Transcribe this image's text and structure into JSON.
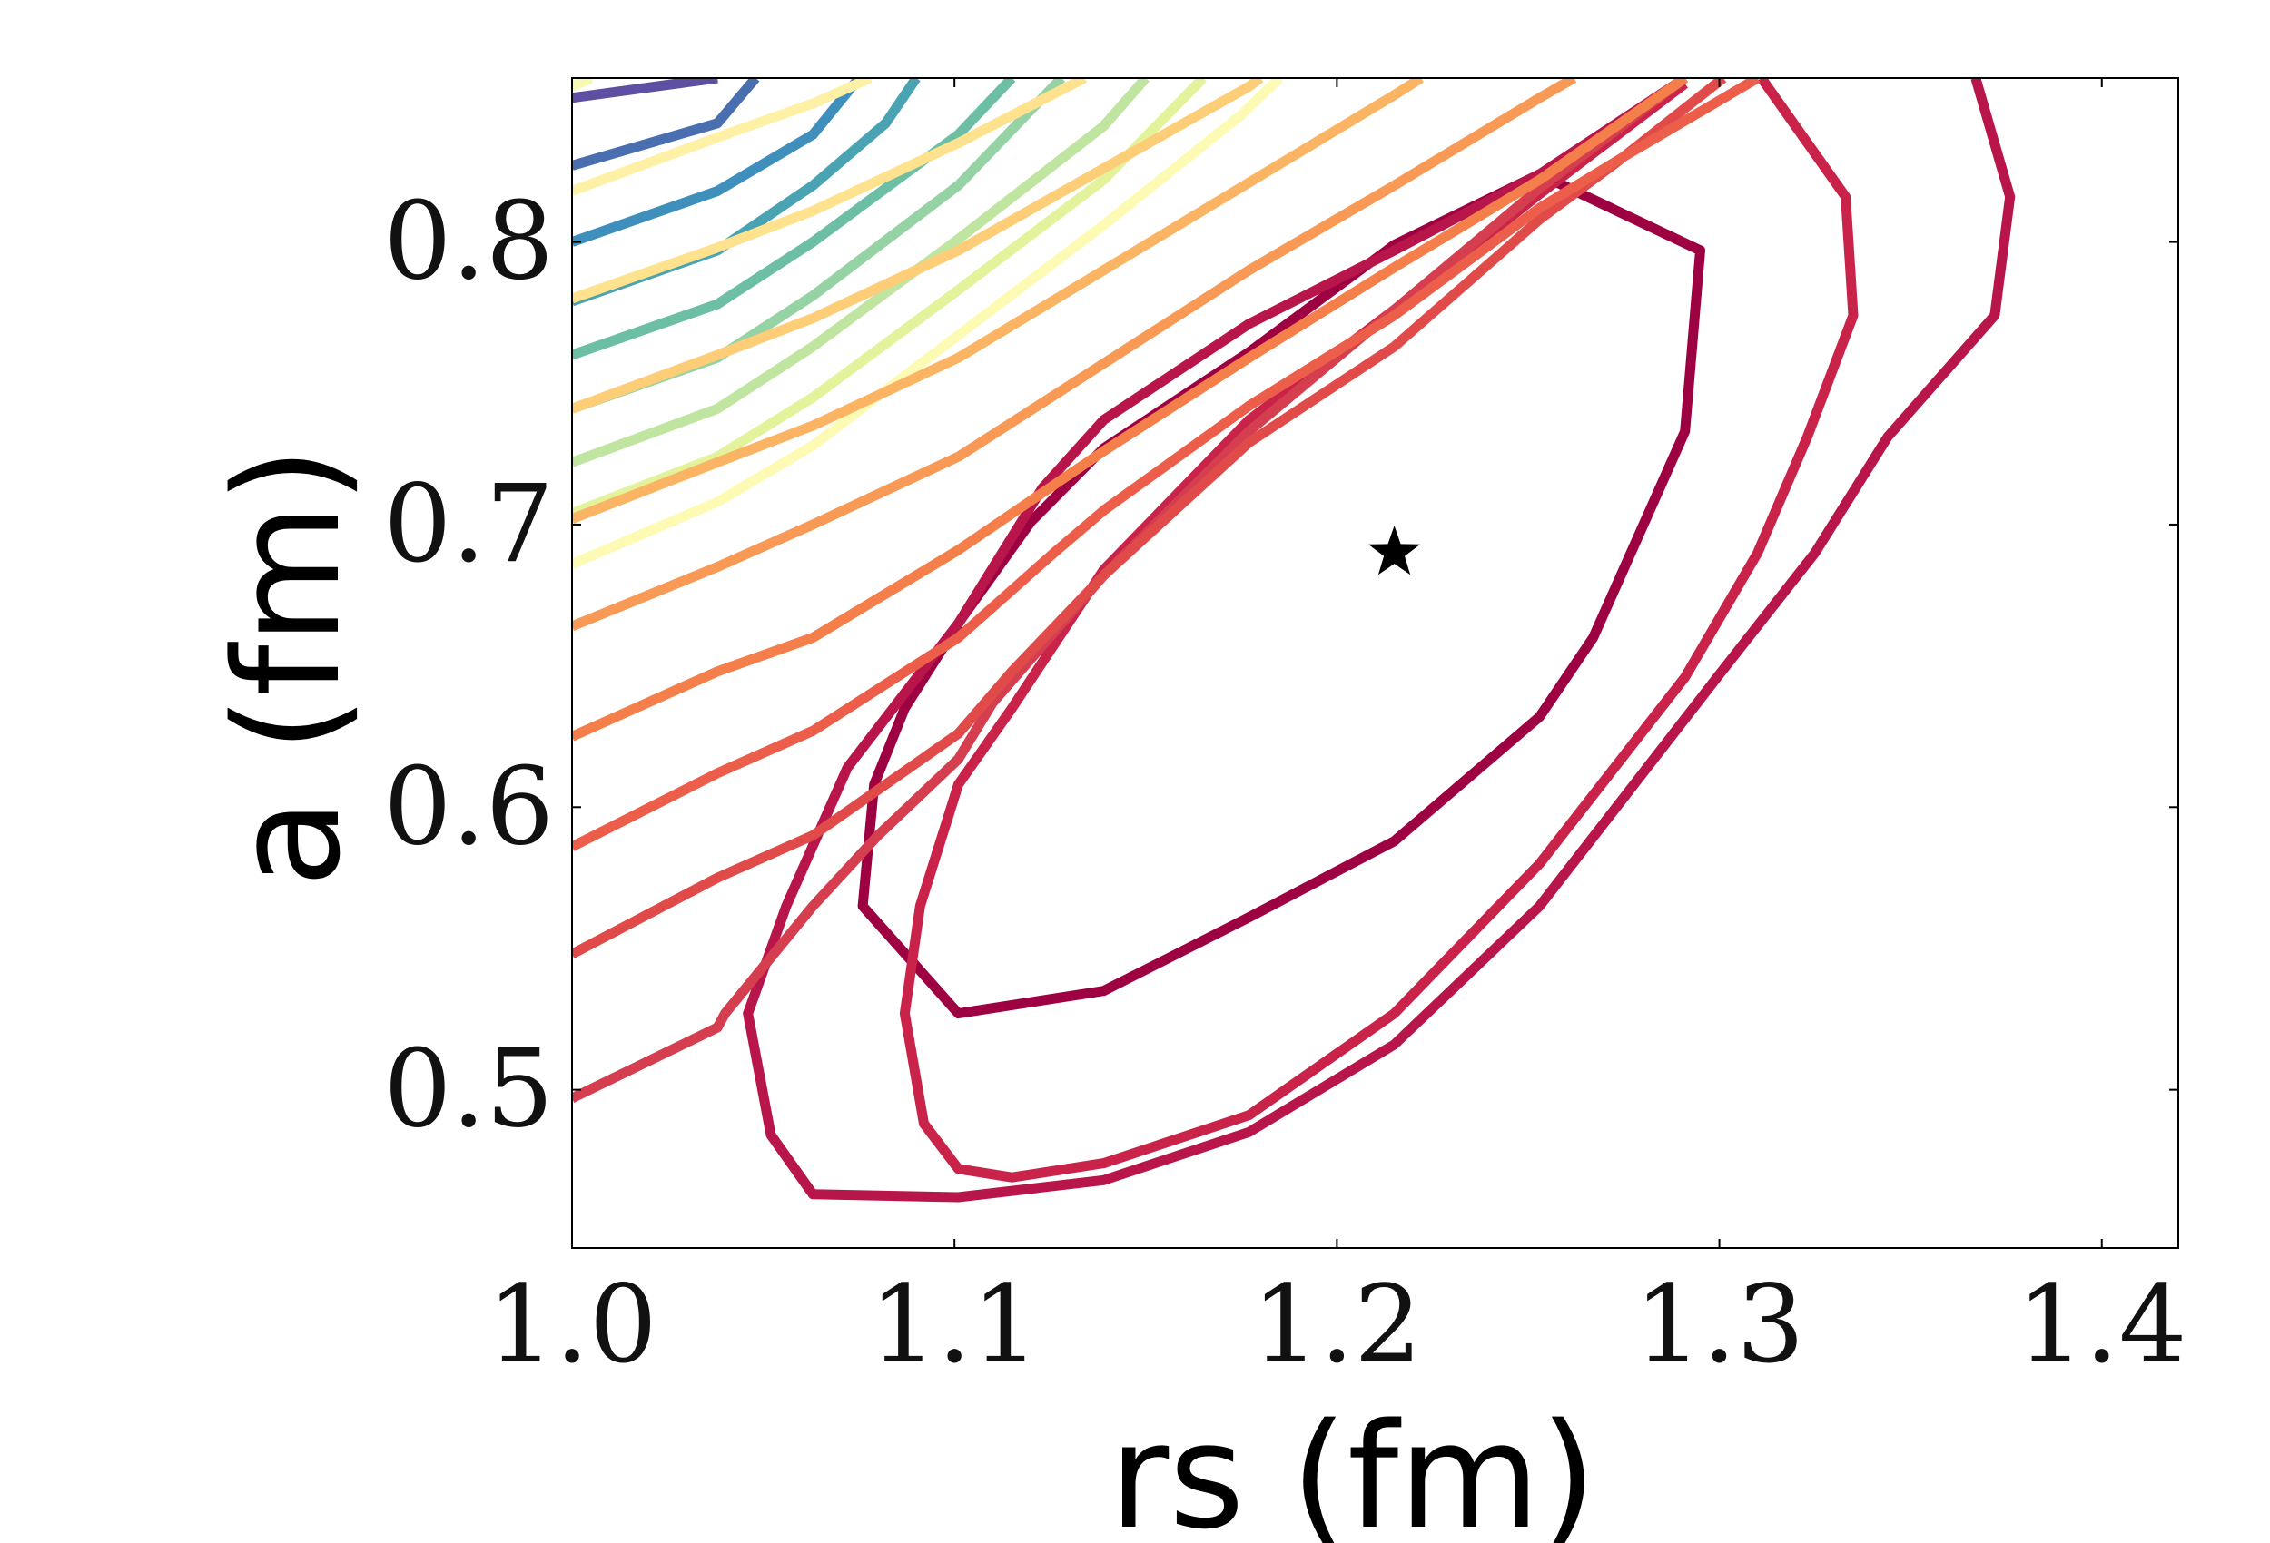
{
  "chart_data": {
    "type": "contour",
    "title": "",
    "xlabel": "rs (fm)",
    "ylabel": "a (fm)",
    "xlim": [
      1.0,
      1.42
    ],
    "ylim": [
      0.444,
      0.858
    ],
    "xticks": [
      1.0,
      1.1,
      1.2,
      1.3,
      1.4
    ],
    "xtick_labels": [
      "1.0",
      "1.1",
      "1.2",
      "1.3",
      "1.4"
    ],
    "yticks": [
      0.5,
      0.6,
      0.7,
      0.8
    ],
    "ytick_labels": [
      "0.5",
      "0.6",
      "0.7",
      "0.8"
    ],
    "grid": false,
    "colormap": "Spectral",
    "optimum": {
      "x": 1.215,
      "y": 0.69,
      "marker": "star"
    },
    "contours": [
      {
        "level": 1,
        "color": "#9e0142",
        "points": [
          [
            1.253,
            0.824
          ],
          [
            1.215,
            0.799
          ],
          [
            1.177,
            0.761
          ],
          [
            1.139,
            0.727
          ],
          [
            1.12,
            0.701
          ],
          [
            1.102,
            0.667
          ],
          [
            1.087,
            0.635
          ],
          [
            1.079,
            0.608
          ],
          [
            1.076,
            0.565
          ],
          [
            1.101,
            0.527
          ],
          [
            1.139,
            0.535
          ],
          [
            1.177,
            0.561
          ],
          [
            1.215,
            0.588
          ],
          [
            1.253,
            0.632
          ],
          [
            1.267,
            0.66
          ],
          [
            1.291,
            0.733
          ],
          [
            1.295,
            0.797
          ],
          [
            1.253,
            0.824
          ]
        ]
      },
      {
        "level": 2,
        "color": "#b8164a",
        "points": [
          [
            1.367,
            0.858
          ],
          [
            1.376,
            0.816
          ],
          [
            1.372,
            0.774
          ],
          [
            1.344,
            0.731
          ],
          [
            1.325,
            0.69
          ],
          [
            1.3,
            0.647
          ],
          [
            1.253,
            0.565
          ],
          [
            1.215,
            0.516
          ],
          [
            1.177,
            0.485
          ],
          [
            1.139,
            0.468
          ],
          [
            1.101,
            0.462
          ],
          [
            1.063,
            0.463
          ],
          [
            1.052,
            0.484
          ],
          [
            1.046,
            0.527
          ],
          [
            1.056,
            0.565
          ],
          [
            1.072,
            0.614
          ],
          [
            1.101,
            0.665
          ],
          [
            1.123,
            0.713
          ],
          [
            1.139,
            0.737
          ],
          [
            1.177,
            0.771
          ],
          [
            1.215,
            0.797
          ],
          [
            1.253,
            0.824
          ],
          [
            1.291,
            0.858
          ]
        ]
      },
      {
        "level": 3,
        "color": "#c92349",
        "points": [
          [
            1.311,
            0.858
          ],
          [
            1.333,
            0.816
          ],
          [
            1.335,
            0.774
          ],
          [
            1.323,
            0.731
          ],
          [
            1.31,
            0.69
          ],
          [
            1.291,
            0.646
          ],
          [
            1.253,
            0.58
          ],
          [
            1.215,
            0.527
          ],
          [
            1.177,
            0.491
          ],
          [
            1.139,
            0.474
          ],
          [
            1.115,
            0.469
          ],
          [
            1.101,
            0.472
          ],
          [
            1.092,
            0.488
          ],
          [
            1.087,
            0.527
          ],
          [
            1.091,
            0.565
          ],
          [
            1.101,
            0.608
          ],
          [
            1.115,
            0.635
          ],
          [
            1.139,
            0.684
          ],
          [
            1.177,
            0.737
          ],
          [
            1.215,
            0.776
          ],
          [
            1.253,
            0.817
          ],
          [
            1.291,
            0.856
          ]
        ]
      },
      {
        "level": 4,
        "color": "#d53e4f",
        "points": [
          [
            1.0,
            0.497
          ],
          [
            1.038,
            0.522
          ],
          [
            1.04,
            0.527
          ],
          [
            1.063,
            0.565
          ],
          [
            1.08,
            0.59
          ],
          [
            1.101,
            0.617
          ],
          [
            1.11,
            0.637
          ],
          [
            1.139,
            0.682
          ],
          [
            1.177,
            0.733
          ],
          [
            1.215,
            0.776
          ],
          [
            1.253,
            0.819
          ],
          [
            1.291,
            0.858
          ]
        ]
      },
      {
        "level": 5,
        "color": "#e04b4a",
        "points": [
          [
            1.0,
            0.548
          ],
          [
            1.038,
            0.575
          ],
          [
            1.063,
            0.59
          ],
          [
            1.101,
            0.626
          ],
          [
            1.115,
            0.648
          ],
          [
            1.139,
            0.682
          ],
          [
            1.177,
            0.729
          ],
          [
            1.215,
            0.763
          ],
          [
            1.253,
            0.808
          ],
          [
            1.272,
            0.827
          ],
          [
            1.301,
            0.858
          ]
        ]
      },
      {
        "level": 6,
        "color": "#ec5e4a",
        "points": [
          [
            1.0,
            0.586
          ],
          [
            1.038,
            0.612
          ],
          [
            1.063,
            0.627
          ],
          [
            1.101,
            0.66
          ],
          [
            1.126,
            0.69
          ],
          [
            1.139,
            0.705
          ],
          [
            1.177,
            0.742
          ],
          [
            1.215,
            0.774
          ],
          [
            1.253,
            0.812
          ],
          [
            1.276,
            0.831
          ],
          [
            1.31,
            0.858
          ]
        ]
      },
      {
        "level": 7,
        "color": "#f47f4a",
        "points": [
          [
            1.0,
            0.625
          ],
          [
            1.038,
            0.648
          ],
          [
            1.063,
            0.66
          ],
          [
            1.101,
            0.691
          ],
          [
            1.139,
            0.726
          ],
          [
            1.177,
            0.759
          ],
          [
            1.215,
            0.791
          ],
          [
            1.253,
            0.822
          ],
          [
            1.291,
            0.858
          ]
        ]
      },
      {
        "level": 8,
        "color": "#f89a56",
        "points": [
          [
            1.0,
            0.664
          ],
          [
            1.038,
            0.685
          ],
          [
            1.063,
            0.7
          ],
          [
            1.101,
            0.724
          ],
          [
            1.139,
            0.757
          ],
          [
            1.177,
            0.79
          ],
          [
            1.215,
            0.82
          ],
          [
            1.253,
            0.851
          ],
          [
            1.262,
            0.858
          ]
        ]
      },
      {
        "level": 9,
        "color": "#fbb463",
        "points": [
          [
            1.0,
            0.702
          ],
          [
            1.038,
            0.722
          ],
          [
            1.063,
            0.735
          ],
          [
            1.101,
            0.759
          ],
          [
            1.139,
            0.79
          ],
          [
            1.177,
            0.821
          ],
          [
            1.215,
            0.852
          ],
          [
            1.222,
            0.858
          ]
        ]
      },
      {
        "level": 10,
        "color": "#fdcd78",
        "points": [
          [
            1.0,
            0.741
          ],
          [
            1.038,
            0.76
          ],
          [
            1.063,
            0.773
          ],
          [
            1.101,
            0.797
          ],
          [
            1.139,
            0.826
          ],
          [
            1.177,
            0.855
          ],
          [
            1.18,
            0.858
          ]
        ]
      },
      {
        "level": 11,
        "color": "#fee28e",
        "points": [
          [
            1.0,
            0.78
          ],
          [
            1.038,
            0.798
          ],
          [
            1.063,
            0.811
          ],
          [
            1.101,
            0.835
          ],
          [
            1.134,
            0.858
          ]
        ]
      },
      {
        "level": 12,
        "color": "#fef1a6",
        "points": [
          [
            1.0,
            0.818
          ],
          [
            1.038,
            0.837
          ],
          [
            1.063,
            0.849
          ],
          [
            1.078,
            0.858
          ]
        ]
      },
      {
        "level": 13,
        "color": "#f6faae",
        "points": [
          [
            1.0,
            0.855
          ],
          [
            1.005,
            0.858
          ]
        ]
      }
    ],
    "contours_upper_left": [
      {
        "color": "#5e4fa2",
        "points": [
          [
            1.0,
            0.851
          ],
          [
            1.038,
            0.858
          ]
        ]
      },
      {
        "color": "#4a6fb0",
        "points": [
          [
            1.0,
            0.827
          ],
          [
            1.038,
            0.842
          ],
          [
            1.048,
            0.858
          ]
        ]
      },
      {
        "color": "#3f8fbd",
        "points": [
          [
            1.0,
            0.8
          ],
          [
            1.038,
            0.818
          ],
          [
            1.063,
            0.838
          ],
          [
            1.075,
            0.858
          ]
        ]
      },
      {
        "color": "#4aa3b3",
        "points": [
          [
            1.0,
            0.779
          ],
          [
            1.038,
            0.797
          ],
          [
            1.063,
            0.82
          ],
          [
            1.082,
            0.842
          ],
          [
            1.09,
            0.858
          ]
        ]
      },
      {
        "color": "#6cbea5",
        "points": [
          [
            1.0,
            0.76
          ],
          [
            1.038,
            0.778
          ],
          [
            1.063,
            0.8
          ],
          [
            1.101,
            0.838
          ],
          [
            1.115,
            0.858
          ]
        ]
      },
      {
        "color": "#96d3a4",
        "points": [
          [
            1.0,
            0.741
          ],
          [
            1.038,
            0.759
          ],
          [
            1.063,
            0.781
          ],
          [
            1.101,
            0.82
          ],
          [
            1.128,
            0.858
          ]
        ]
      },
      {
        "color": "#bfe5a0",
        "points": [
          [
            1.0,
            0.722
          ],
          [
            1.038,
            0.741
          ],
          [
            1.063,
            0.763
          ],
          [
            1.101,
            0.801
          ],
          [
            1.139,
            0.841
          ],
          [
            1.15,
            0.858
          ]
        ]
      },
      {
        "color": "#e3f39b",
        "points": [
          [
            1.0,
            0.704
          ],
          [
            1.038,
            0.724
          ],
          [
            1.063,
            0.745
          ],
          [
            1.101,
            0.783
          ],
          [
            1.139,
            0.822
          ],
          [
            1.165,
            0.858
          ]
        ]
      },
      {
        "color": "#fdfbb3",
        "points": [
          [
            1.0,
            0.686
          ],
          [
            1.038,
            0.708
          ],
          [
            1.063,
            0.728
          ],
          [
            1.101,
            0.767
          ],
          [
            1.139,
            0.806
          ],
          [
            1.175,
            0.845
          ],
          [
            1.185,
            0.858
          ]
        ]
      }
    ]
  }
}
